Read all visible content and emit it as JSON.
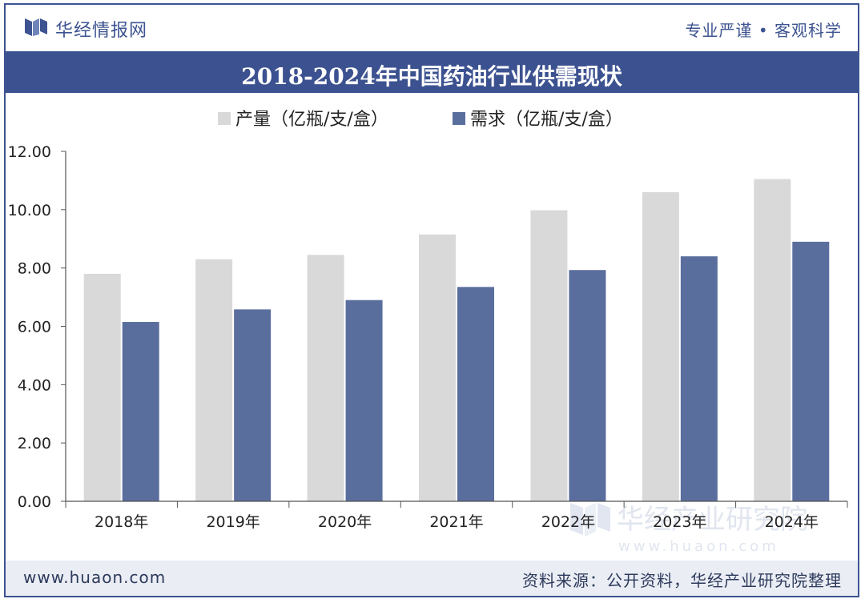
{
  "header": {
    "brand": "华经情报网",
    "slogan": "专业严谨 • 客观科学"
  },
  "watermark": {
    "name": "华经产业研究院",
    "url": "www.huaon.com"
  },
  "footer": {
    "url": "www.huaon.com",
    "source": "资料来源：公开资料，华经产业研究院整理"
  },
  "colors": {
    "brand": "#3c5290",
    "production": "#d9d9d9",
    "demand": "#5a6e9e"
  },
  "chart_data": {
    "type": "bar",
    "title": "2018-2024年中国药油行业供需现状",
    "categories": [
      "2018年",
      "2019年",
      "2020年",
      "2021年",
      "2022年",
      "2023年",
      "2024年"
    ],
    "series": [
      {
        "name": "产量（亿瓶/支/盒）",
        "values": [
          7.8,
          8.3,
          8.45,
          9.15,
          9.98,
          10.6,
          11.05
        ]
      },
      {
        "name": "需求（亿瓶/支/盒）",
        "values": [
          6.15,
          6.58,
          6.9,
          7.35,
          7.93,
          8.4,
          8.9
        ]
      }
    ],
    "ylim": [
      0,
      12
    ],
    "yticks": [
      "0.00",
      "2.00",
      "4.00",
      "6.00",
      "8.00",
      "10.00",
      "12.00"
    ],
    "xlabel": "",
    "ylabel": "",
    "legend": "top-left"
  }
}
